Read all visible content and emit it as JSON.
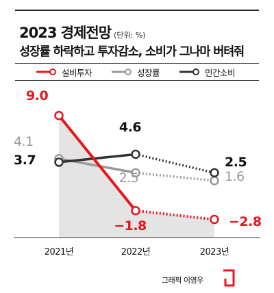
{
  "header": {
    "title": "2023 경제전망",
    "unit": "(단위: %)",
    "subtitle": "성장률 하락하고 투자감소, 소비가 그나마 버텨줘"
  },
  "credit": "그래픽 이영우",
  "chart_data": {
    "type": "line",
    "categories": [
      "2021년",
      "2022년",
      "2023년"
    ],
    "ylim": [
      -4,
      11
    ],
    "series": [
      {
        "name": "설비투자",
        "values": [
          9.0,
          -1.8,
          -2.8
        ],
        "labels": [
          "9.0",
          "−1.8",
          "−2.8"
        ],
        "color": "#e8151b",
        "bold_labels": true,
        "filled": true
      },
      {
        "name": "성장률",
        "values": [
          4.1,
          2.5,
          1.6
        ],
        "labels": [
          "4.1",
          "2.5",
          "1.6"
        ],
        "color": "#999999",
        "bold_labels": false,
        "filled": false
      },
      {
        "name": "민간소비",
        "values": [
          3.7,
          4.6,
          2.5
        ],
        "labels": [
          "3.7",
          "4.6",
          "2.5"
        ],
        "color": "#333333",
        "bold_labels": false,
        "filled": false
      }
    ],
    "forecast_segment": "2022년-2023년 dotted",
    "grid": false,
    "legend_position": "top"
  }
}
